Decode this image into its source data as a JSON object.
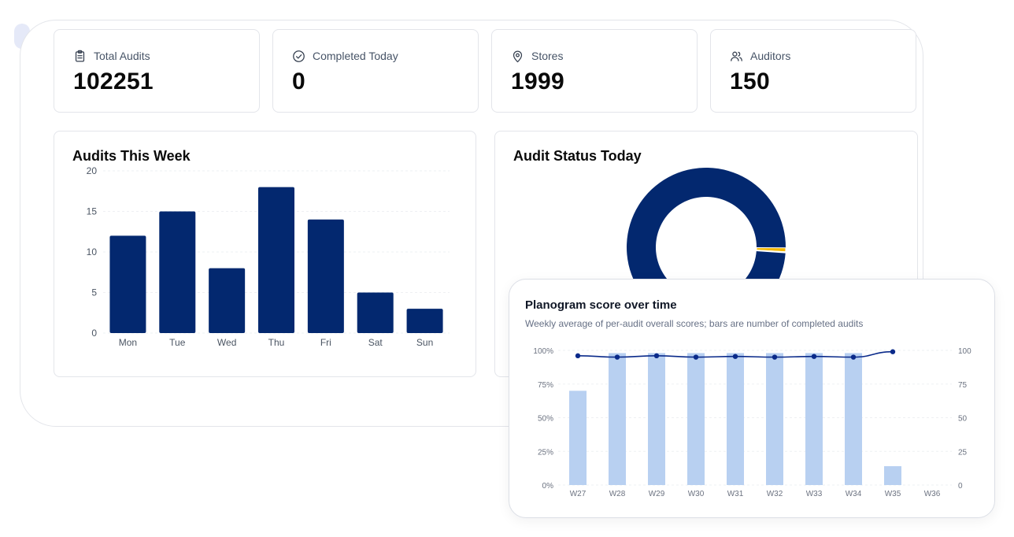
{
  "stats": [
    {
      "label": "Total Audits",
      "value": "102251",
      "icon": "clipboard-icon"
    },
    {
      "label": "Completed Today",
      "value": "0",
      "icon": "check-circle-icon"
    },
    {
      "label": "Stores",
      "value": "1999",
      "icon": "map-pin-icon"
    },
    {
      "label": "Auditors",
      "value": "150",
      "icon": "users-icon"
    }
  ],
  "week_panel": {
    "title": "Audits This Week"
  },
  "status_panel": {
    "title": "Audit Status Today"
  },
  "planogram": {
    "title": "Planogram score over time",
    "subtitle": "Weekly average of per-audit overall scores; bars are number of completed audits"
  },
  "colors": {
    "navy": "#03286f",
    "light_bar": "#b8d0f1",
    "accent": "#f5b800"
  },
  "chart_data": [
    {
      "type": "bar",
      "title": "Audits This Week",
      "categories": [
        "Mon",
        "Tue",
        "Wed",
        "Thu",
        "Fri",
        "Sat",
        "Sun"
      ],
      "values": [
        12,
        15,
        8,
        18,
        14,
        5,
        3
      ],
      "ylim": [
        0,
        20
      ],
      "yticks": [
        "0",
        "5",
        "10",
        "15",
        "20"
      ],
      "grid": true
    },
    {
      "type": "pie",
      "title": "Audit Status Today",
      "slices": [
        {
          "value": 0.99,
          "color": "#03286f"
        },
        {
          "value": 0.008,
          "color": "#f5b800"
        },
        {
          "value": 0.002,
          "color": "#ffffff"
        }
      ]
    },
    {
      "type": "bar",
      "title": "Planogram score over time",
      "categories": [
        "W27",
        "W28",
        "W29",
        "W30",
        "W31",
        "W32",
        "W33",
        "W34",
        "W35",
        "W36"
      ],
      "bar_values": [
        70,
        98,
        98,
        98,
        98,
        98,
        98,
        98,
        14,
        0
      ],
      "line_values": [
        96,
        95,
        96,
        95,
        95.5,
        95,
        95.5,
        95,
        99,
        null
      ],
      "left_ticks": [
        "0%",
        "25%",
        "50%",
        "75%",
        "100%"
      ],
      "right_ticks": [
        "0",
        "25",
        "50",
        "75",
        "100"
      ],
      "ylim": [
        0,
        100
      ],
      "grid": true
    }
  ]
}
